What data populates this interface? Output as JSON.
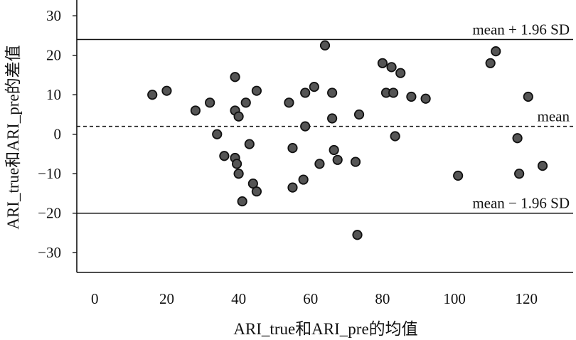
{
  "chart_data": {
    "type": "scatter",
    "xlabel": "ARI_true和ARI_pre的均值",
    "ylabel": "ARI_true和ARI_pre的差值",
    "xlim": [
      -5,
      133
    ],
    "ylim": [
      -35,
      34
    ],
    "x_ticks": [
      0,
      20,
      40,
      60,
      80,
      100,
      120
    ],
    "x_tick_labels": [
      "0",
      "20",
      "40",
      "60",
      "80",
      "100",
      "120"
    ],
    "y_ticks": [
      -30,
      -20,
      -10,
      0,
      10,
      20,
      30
    ],
    "y_tick_labels": [
      "−30",
      "−20",
      "−10",
      "0",
      "10",
      "20",
      "30"
    ],
    "grid": false,
    "reference_lines": [
      {
        "label": "mean + 1.96 SD",
        "y": 24,
        "style": "solid"
      },
      {
        "label": "mean",
        "y": 2,
        "style": "dashed"
      },
      {
        "label": "mean − 1.96 SD",
        "y": -20,
        "style": "solid"
      }
    ],
    "points": [
      {
        "x": 16,
        "y": 10
      },
      {
        "x": 20,
        "y": 11
      },
      {
        "x": 28,
        "y": 6
      },
      {
        "x": 32,
        "y": 8
      },
      {
        "x": 34,
        "y": 0
      },
      {
        "x": 36,
        "y": -5.5
      },
      {
        "x": 39,
        "y": 14.5
      },
      {
        "x": 39,
        "y": 6
      },
      {
        "x": 39,
        "y": -6
      },
      {
        "x": 39.5,
        "y": -7.5
      },
      {
        "x": 40,
        "y": 4.5
      },
      {
        "x": 40,
        "y": -10
      },
      {
        "x": 41,
        "y": -17
      },
      {
        "x": 42,
        "y": 8
      },
      {
        "x": 43,
        "y": -2.5
      },
      {
        "x": 44,
        "y": -12.5
      },
      {
        "x": 45,
        "y": 11
      },
      {
        "x": 45,
        "y": -14.5
      },
      {
        "x": 54,
        "y": 8
      },
      {
        "x": 55,
        "y": -3.5
      },
      {
        "x": 55,
        "y": -13.5
      },
      {
        "x": 58,
        "y": -11.5
      },
      {
        "x": 58.5,
        "y": 10.5
      },
      {
        "x": 58.5,
        "y": 2
      },
      {
        "x": 61,
        "y": 12
      },
      {
        "x": 62.5,
        "y": -7.5
      },
      {
        "x": 64,
        "y": 22.5
      },
      {
        "x": 66,
        "y": 4
      },
      {
        "x": 66,
        "y": 10.5
      },
      {
        "x": 66.5,
        "y": -4
      },
      {
        "x": 67.5,
        "y": -6.5
      },
      {
        "x": 72.5,
        "y": -7
      },
      {
        "x": 73,
        "y": -25.5
      },
      {
        "x": 73.5,
        "y": 5
      },
      {
        "x": 80,
        "y": 18
      },
      {
        "x": 81,
        "y": 10.5
      },
      {
        "x": 82.5,
        "y": 17
      },
      {
        "x": 83,
        "y": 10.5
      },
      {
        "x": 83.5,
        "y": -0.5
      },
      {
        "x": 85,
        "y": 15.5
      },
      {
        "x": 88,
        "y": 9.5
      },
      {
        "x": 92,
        "y": 9
      },
      {
        "x": 101,
        "y": -10.5
      },
      {
        "x": 110,
        "y": 18
      },
      {
        "x": 111.5,
        "y": 21
      },
      {
        "x": 117.5,
        "y": -1
      },
      {
        "x": 118,
        "y": -10
      },
      {
        "x": 120.5,
        "y": 9.5
      },
      {
        "x": 124.5,
        "y": -8
      }
    ]
  }
}
